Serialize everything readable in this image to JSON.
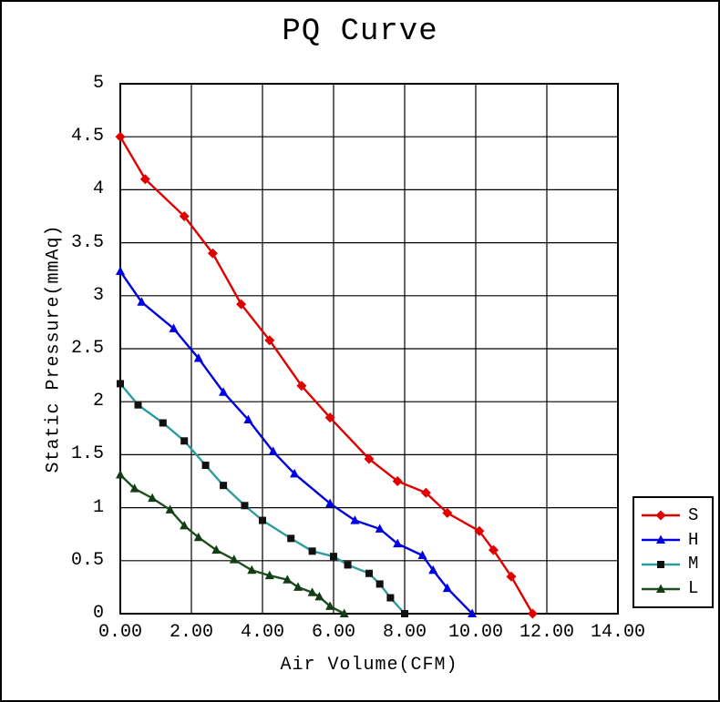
{
  "title": "PQ Curve",
  "x_axis": {
    "label": "Air Volume(CFM)",
    "ticks": [
      "0.00",
      "2.00",
      "4.00",
      "6.00",
      "8.00",
      "10.00",
      "12.00",
      "14.00"
    ],
    "tick_values": [
      0,
      2,
      4,
      6,
      8,
      10,
      12,
      14
    ]
  },
  "y_axis": {
    "label": "Static Pressure(mmAq)",
    "ticks": [
      "0",
      "0.5",
      "1",
      "1.5",
      "2",
      "2.5",
      "3",
      "3.5",
      "4",
      "4.5",
      "5"
    ],
    "tick_values": [
      0,
      0.5,
      1,
      1.5,
      2,
      2.5,
      3,
      3.5,
      4,
      4.5,
      5
    ]
  },
  "legend": {
    "items": [
      "S",
      "H",
      "M",
      "L"
    ]
  },
  "colors": {
    "grid": "#000000",
    "axis": "#000000",
    "series_S": "#e00000",
    "series_H": "#0000e0",
    "series_M_line": "#2f9c9c",
    "series_M_marker": "#111111",
    "series_L": "#1c4f1c"
  },
  "chart_data": {
    "type": "line",
    "title": "PQ Curve",
    "xlabel": "Air Volume(CFM)",
    "ylabel": "Static Pressure(mmAq)",
    "xlim": [
      0,
      14
    ],
    "ylim": [
      0,
      5
    ],
    "grid": true,
    "x_grid_step": 2,
    "y_grid_step": 0.5,
    "legend_position": "right-middle",
    "series": [
      {
        "name": "S",
        "color": "#e00000",
        "marker": "diamond",
        "marker_color": "#e00000",
        "points": [
          [
            0,
            4.5
          ],
          [
            0.7,
            4.1
          ],
          [
            1.8,
            3.75
          ],
          [
            2.6,
            3.4
          ],
          [
            3.4,
            2.92
          ],
          [
            4.2,
            2.58
          ],
          [
            5.1,
            2.15
          ],
          [
            5.9,
            1.85
          ],
          [
            7.0,
            1.46
          ],
          [
            7.8,
            1.25
          ],
          [
            8.6,
            1.14
          ],
          [
            9.2,
            0.95
          ],
          [
            10.1,
            0.78
          ],
          [
            10.5,
            0.6
          ],
          [
            11.0,
            0.35
          ],
          [
            11.6,
            0
          ]
        ]
      },
      {
        "name": "H",
        "color": "#0000e0",
        "marker": "triangle",
        "marker_color": "#0000e0",
        "points": [
          [
            0,
            3.23
          ],
          [
            0.6,
            2.94
          ],
          [
            1.5,
            2.69
          ],
          [
            2.2,
            2.41
          ],
          [
            2.9,
            2.09
          ],
          [
            3.6,
            1.83
          ],
          [
            4.3,
            1.53
          ],
          [
            4.9,
            1.32
          ],
          [
            5.9,
            1.04
          ],
          [
            6.6,
            0.88
          ],
          [
            7.3,
            0.8
          ],
          [
            7.8,
            0.66
          ],
          [
            8.5,
            0.55
          ],
          [
            8.8,
            0.41
          ],
          [
            9.2,
            0.24
          ],
          [
            9.9,
            0
          ]
        ]
      },
      {
        "name": "M",
        "color": "#2f9c9c",
        "marker": "square",
        "marker_color": "#111111",
        "points": [
          [
            0,
            2.17
          ],
          [
            0.5,
            1.97
          ],
          [
            1.2,
            1.8
          ],
          [
            1.8,
            1.63
          ],
          [
            2.4,
            1.4
          ],
          [
            2.9,
            1.21
          ],
          [
            3.5,
            1.02
          ],
          [
            4.0,
            0.88
          ],
          [
            4.8,
            0.71
          ],
          [
            5.4,
            0.59
          ],
          [
            6.0,
            0.54
          ],
          [
            6.4,
            0.46
          ],
          [
            7.0,
            0.38
          ],
          [
            7.3,
            0.28
          ],
          [
            7.6,
            0.15
          ],
          [
            8.0,
            0
          ]
        ]
      },
      {
        "name": "L",
        "color": "#1c4f1c",
        "marker": "triangle",
        "marker_color": "#153d15",
        "points": [
          [
            0,
            1.31
          ],
          [
            0.4,
            1.18
          ],
          [
            0.9,
            1.09
          ],
          [
            1.4,
            0.98
          ],
          [
            1.8,
            0.83
          ],
          [
            2.2,
            0.72
          ],
          [
            2.7,
            0.6
          ],
          [
            3.2,
            0.51
          ],
          [
            3.7,
            0.41
          ],
          [
            4.2,
            0.36
          ],
          [
            4.7,
            0.32
          ],
          [
            5.0,
            0.25
          ],
          [
            5.4,
            0.2
          ],
          [
            5.6,
            0.16
          ],
          [
            5.9,
            0.07
          ],
          [
            6.3,
            0
          ]
        ]
      }
    ]
  }
}
